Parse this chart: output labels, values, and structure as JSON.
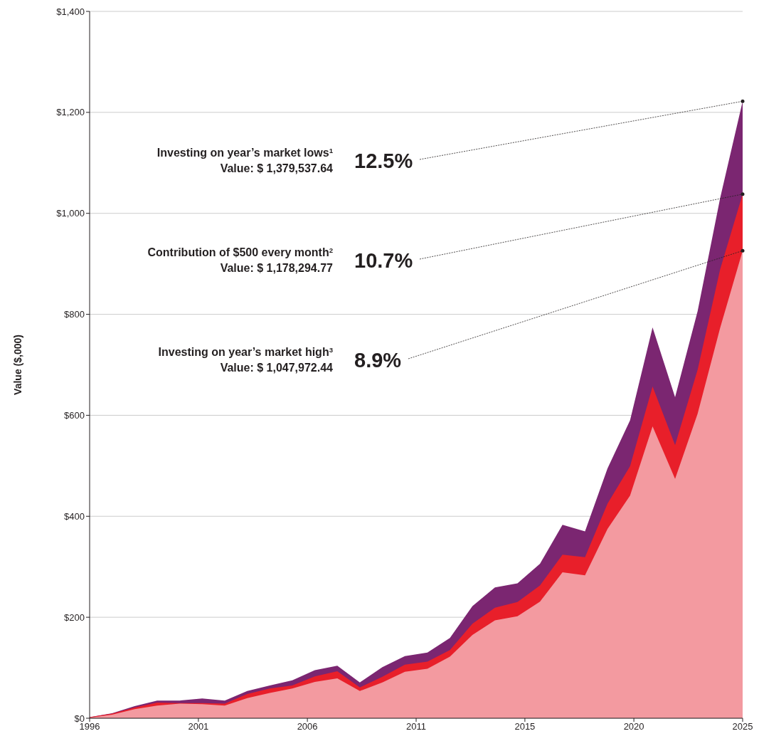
{
  "chart_data": {
    "type": "area",
    "ylabel": "Value ($,000)",
    "x": [
      1996,
      1997,
      1998,
      1999,
      2000,
      2001,
      2002,
      2003,
      2004,
      2005,
      2006,
      2007,
      2008,
      2009,
      2010,
      2011,
      2012,
      2013,
      2014,
      2015,
      2016,
      2017,
      2018,
      2019,
      2020,
      2021,
      2022,
      2023,
      2024,
      2025
    ],
    "series": [
      {
        "color": "#7b2671",
        "values": [
          2,
          10,
          24,
          35,
          35,
          39,
          35,
          54,
          65,
          75,
          95,
          104,
          71,
          101,
          123,
          130,
          159,
          222,
          259,
          267,
          306,
          383,
          370,
          495,
          590,
          774,
          636,
          806,
          1030,
          1222
        ]
      },
      {
        "color": "#e81f2a",
        "values": [
          2,
          9,
          21,
          31,
          30,
          30,
          29,
          48,
          59,
          65,
          83,
          93,
          61,
          82,
          106,
          112,
          135,
          187,
          219,
          230,
          263,
          324,
          319,
          425,
          499,
          657,
          541,
          690,
          889,
          1038
        ]
      },
      {
        "color": "#f39aa0",
        "values": [
          1,
          7,
          18,
          25,
          29,
          28,
          25,
          40,
          50,
          59,
          72,
          79,
          54,
          71,
          92,
          98,
          122,
          165,
          194,
          202,
          231,
          289,
          283,
          375,
          441,
          578,
          474,
          603,
          773,
          926
        ]
      }
    ],
    "xlim": [
      1996,
      2025
    ],
    "xticks": [
      1996,
      {
        "value": 2000.83,
        "label": "2001"
      },
      {
        "value": 2005.67,
        "label": "2006"
      },
      {
        "value": 2010.5,
        "label": "2011"
      },
      {
        "value": 2015.33,
        "label": "2015"
      },
      {
        "value": 2020.17,
        "label": "2020"
      },
      2025
    ],
    "ylim": [
      0,
      1400
    ],
    "yticks": [
      {
        "value": 0,
        "label": "$0"
      },
      {
        "value": 200,
        "label": "$200"
      },
      {
        "value": 400,
        "label": "$400"
      },
      {
        "value": 600,
        "label": "$600"
      },
      {
        "value": 800,
        "label": "$800"
      },
      {
        "value": 1000,
        "label": "$1,000"
      },
      {
        "value": 1200,
        "label": "$1,200"
      },
      {
        "value": 1400,
        "label": "$1,400"
      }
    ],
    "grid": "y",
    "annotations": [
      "Investing on year’s market lows$^{1}$\nValue: $ 1,379,537.64",
      "12.5%",
      "Contribution of $500 every month$^{2}$\nValue: $ 1,178,294.77",
      "10.7%",
      "Investing on year’s market high$^{3}$\nValue: $ 1,047,972.44",
      "8.9%"
    ]
  }
}
